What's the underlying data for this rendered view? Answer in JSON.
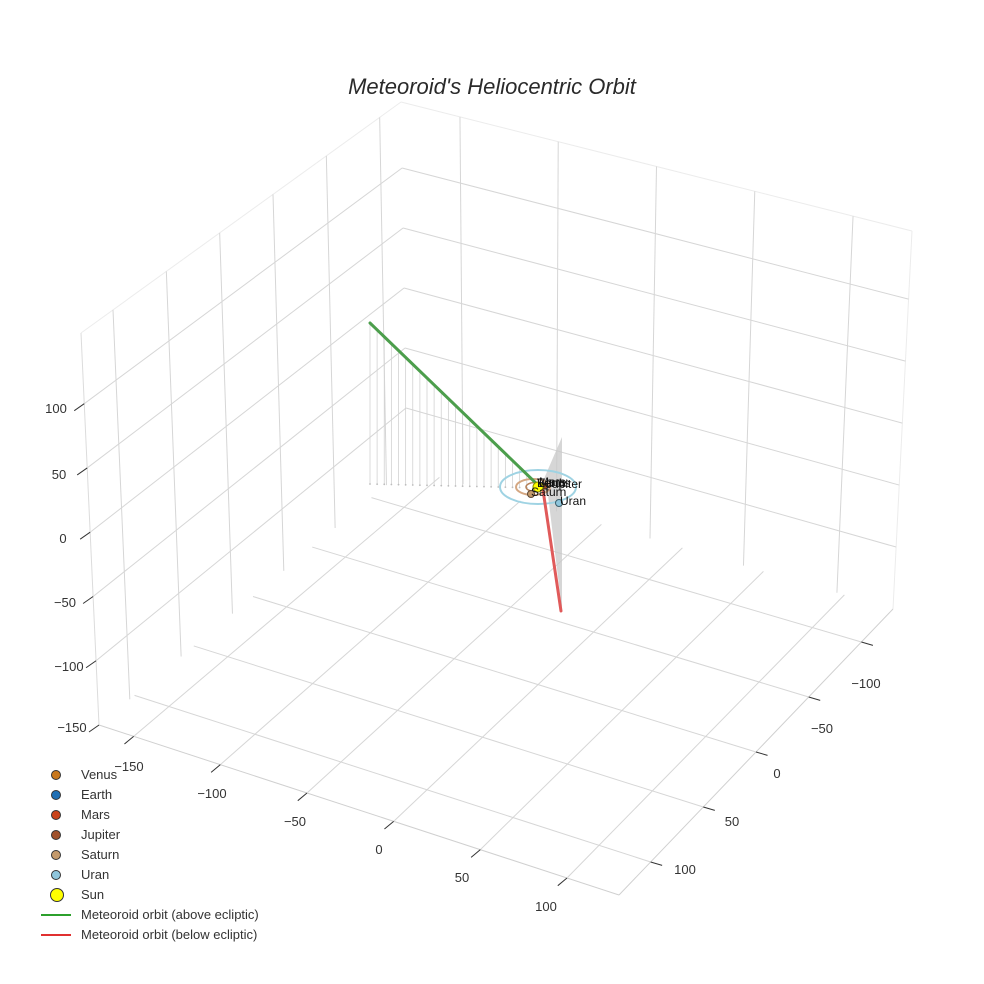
{
  "title": "Meteoroid's Heliocentric Orbit",
  "legend": [
    {
      "label": "Venus",
      "type": "marker",
      "color": "#c8781e"
    },
    {
      "label": "Earth",
      "type": "marker",
      "color": "#1f6fb4"
    },
    {
      "label": "Mars",
      "type": "marker",
      "color": "#c9441c"
    },
    {
      "label": "Jupiter",
      "type": "marker",
      "color": "#a0522d"
    },
    {
      "label": "Saturn",
      "type": "marker",
      "color": "#c49a6c"
    },
    {
      "label": "Uran",
      "type": "marker",
      "color": "#8fc6dc"
    },
    {
      "label": "Sun",
      "type": "marker-big",
      "color": "#ffff00"
    },
    {
      "label": "Meteoroid orbit (above ecliptic)",
      "type": "line",
      "color": "#2ca02c"
    },
    {
      "label": "Meteoroid orbit (below ecliptic)",
      "type": "line",
      "color": "#e03030"
    }
  ],
  "chart_data": {
    "type": "scatter3d",
    "title": "Meteoroid's Heliocentric Orbit",
    "axes": {
      "x": {
        "ticks": [
          -150,
          -100,
          -50,
          0,
          50,
          100
        ],
        "range": [
          -170,
          130
        ]
      },
      "y": {
        "ticks": [
          -100,
          -50,
          0,
          50,
          100
        ],
        "range": [
          -130,
          130
        ]
      },
      "z": {
        "ticks": [
          -150,
          -100,
          -50,
          0,
          50,
          100
        ],
        "range": [
          -150,
          150
        ]
      }
    },
    "grid": true,
    "legend_position": "bottom-left",
    "planets": [
      {
        "name": "Venus",
        "x": 0.7,
        "y": 0.0,
        "z": 0,
        "color": "#c8781e"
      },
      {
        "name": "Earth",
        "x": 1.0,
        "y": 0.0,
        "z": 0,
        "color": "#1f6fb4"
      },
      {
        "name": "Mars",
        "x": 1.5,
        "y": 0.0,
        "z": 0,
        "color": "#c9441c"
      },
      {
        "name": "Jupiter",
        "x": 5.2,
        "y": 0.0,
        "z": 0,
        "color": "#a0522d"
      },
      {
        "name": "Saturn",
        "x": -8.0,
        "y": -5.0,
        "z": 0,
        "color": "#c49a6c"
      },
      {
        "name": "Uran",
        "x": 10.0,
        "y": -18.0,
        "z": 0,
        "color": "#8fc6dc"
      },
      {
        "name": "Sun",
        "x": 0,
        "y": 0,
        "z": 0,
        "color": "#ffff00"
      }
    ],
    "orbit_rings": [
      {
        "name": "Jupiter",
        "radius": 5.2
      },
      {
        "name": "Saturn",
        "radius": 9.5
      },
      {
        "name": "Uran",
        "radius": 19.2
      }
    ],
    "series": [
      {
        "name": "Meteoroid orbit (above ecliptic)",
        "color": "#2ca02c",
        "points": [
          [
            0,
            0,
            0
          ],
          [
            -30,
            60,
            50
          ],
          [
            -60,
            120,
            100
          ],
          [
            -62,
            125,
            103
          ]
        ]
      },
      {
        "name": "Meteoroid orbit (below ecliptic)",
        "color": "#e03030",
        "points": [
          [
            0,
            0,
            0
          ],
          [
            5,
            -10,
            -60
          ],
          [
            9,
            -16,
            -110
          ]
        ]
      }
    ]
  },
  "tick_labels": {
    "z": [
      "100",
      "50",
      "0",
      "−50",
      "−100",
      "−150"
    ],
    "x": [
      "−150",
      "−100",
      "−50",
      "0",
      "50",
      "100"
    ],
    "y": [
      "−100",
      "−50",
      "0",
      "50",
      "100"
    ]
  },
  "point_labels": [
    "Venus",
    "Earth",
    "Mars",
    "Jupiter",
    "Saturn",
    "Uran"
  ]
}
